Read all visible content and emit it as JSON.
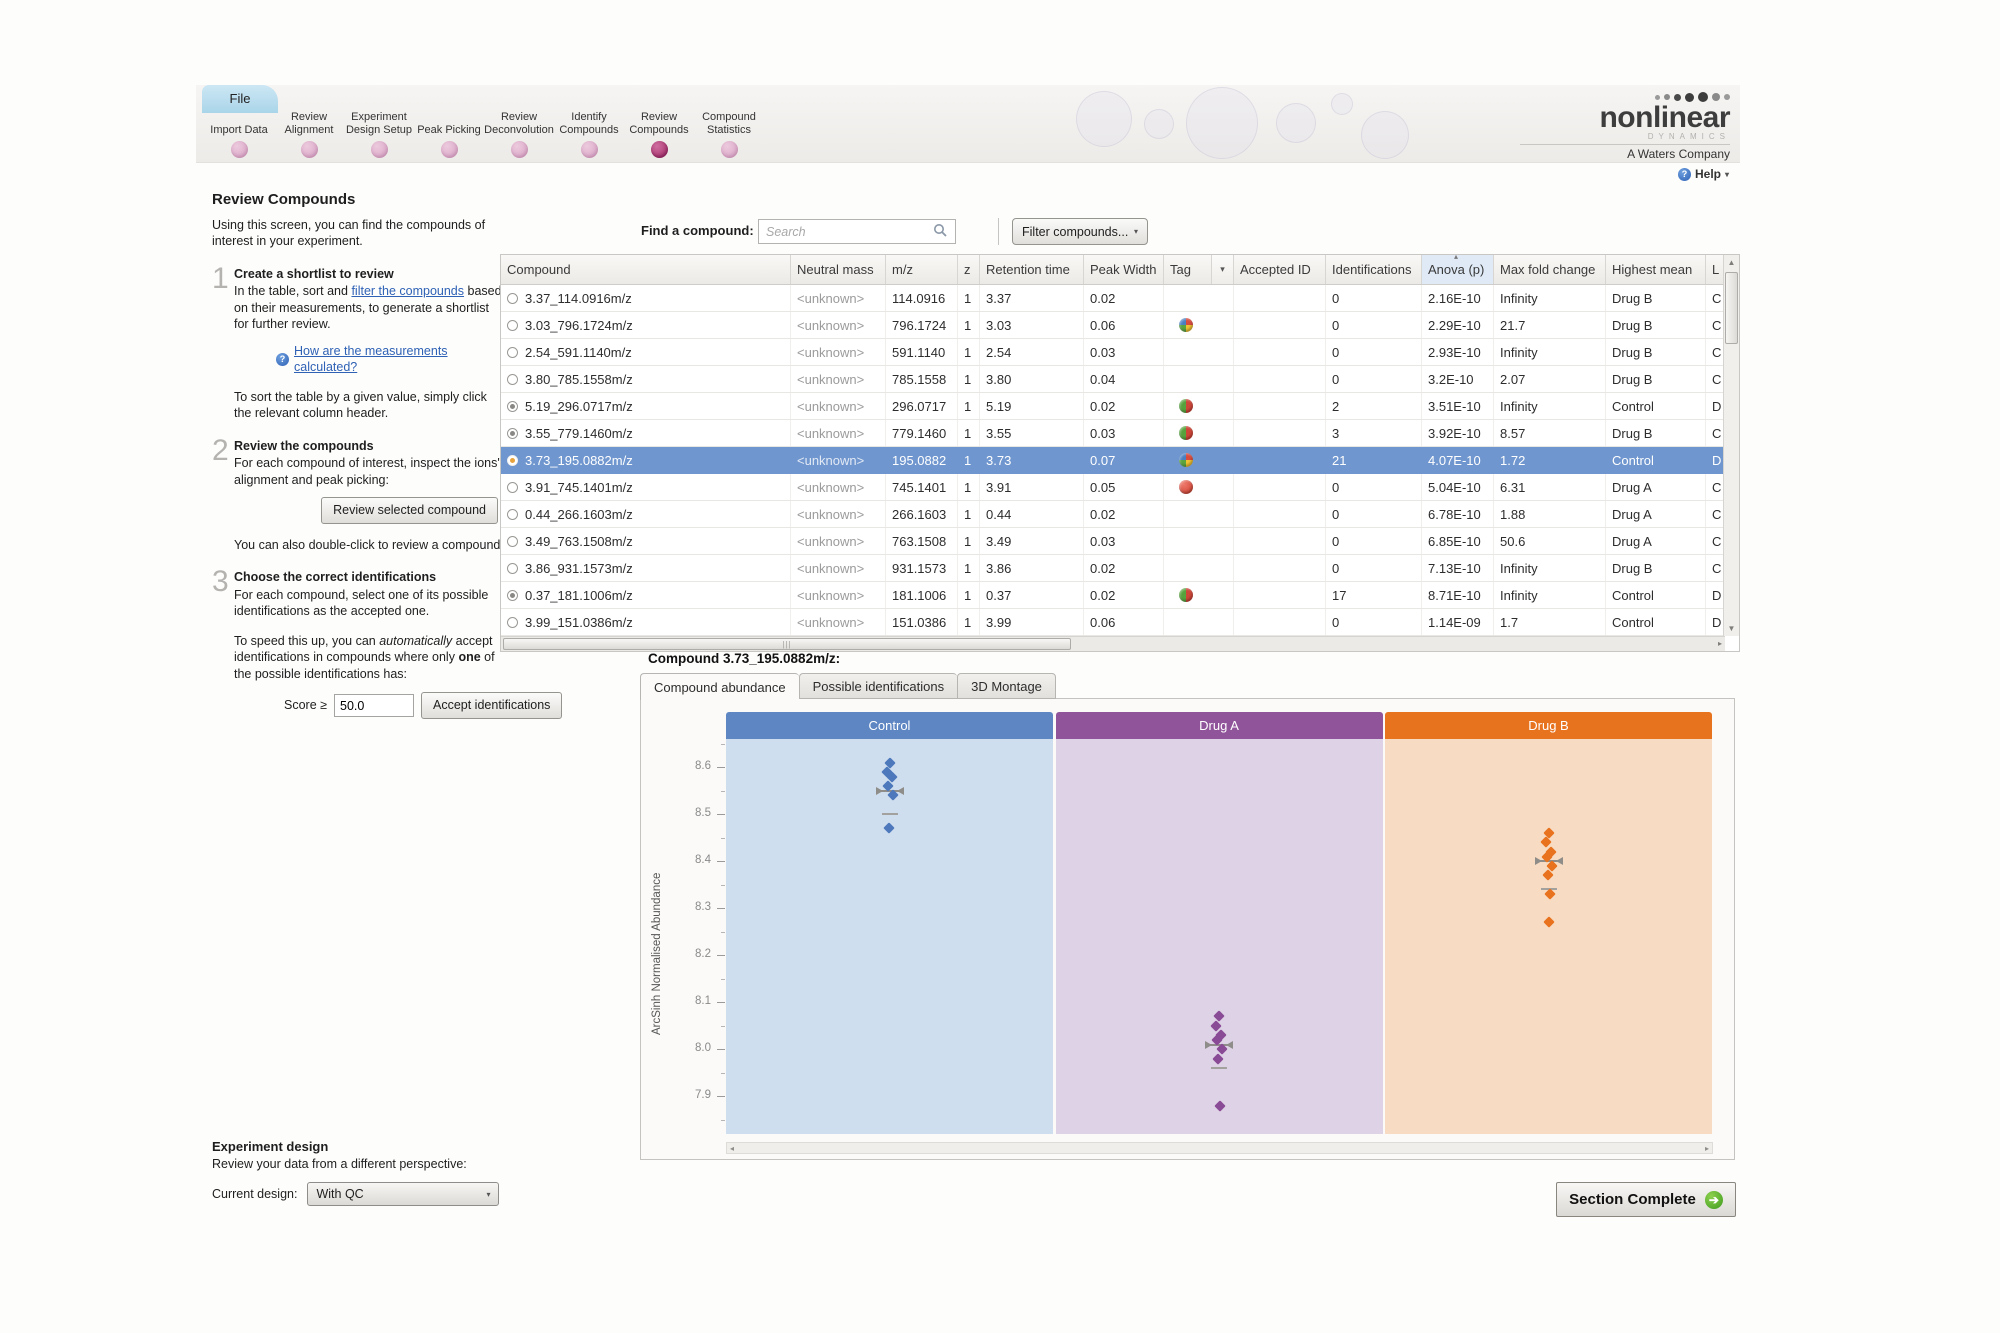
{
  "header": {
    "file_tab": "File",
    "steps": [
      {
        "line1": "",
        "line2": "Import Data",
        "active": false
      },
      {
        "line1": "Review",
        "line2": "Alignment",
        "active": false
      },
      {
        "line1": "Experiment",
        "line2": "Design Setup",
        "active": false
      },
      {
        "line1": "",
        "line2": "Peak Picking",
        "active": false
      },
      {
        "line1": "Review",
        "line2": "Deconvolution",
        "active": false
      },
      {
        "line1": "Identify",
        "line2": "Compounds",
        "active": false
      },
      {
        "line1": "Review",
        "line2": "Compounds",
        "active": true
      },
      {
        "line1": "Compound",
        "line2": "Statistics",
        "active": false
      }
    ],
    "logo": {
      "name": "nonlinear",
      "tagline": "DYNAMICS",
      "company": "A Waters Company"
    },
    "help_label": "Help"
  },
  "sidebar": {
    "title": "Review Compounds",
    "intro": "Using this screen, you can find the compounds of interest in your experiment.",
    "step1": {
      "num": "1",
      "heading": "Create a shortlist to review",
      "body_pre": "In the table, sort and ",
      "body_link": "filter the compounds",
      "body_post": " based on their measurements, to generate a shortlist for further review.",
      "measurements_link": "How are the measurements calculated?"
    },
    "sort_note": "To sort the table by a given value, simply click the relevant column header.",
    "step2": {
      "num": "2",
      "heading": "Review the compounds",
      "body": "For each compound of interest, inspect the ions' alignment and peak picking:",
      "button": "Review selected compound",
      "note": "You can also double-click to review a compound."
    },
    "step3": {
      "num": "3",
      "heading": "Choose the correct identifications",
      "body": "For each compound, select one of its possible identifications as the accepted one.",
      "speed_pre": "To speed this up, you can ",
      "speed_italic": "automatically",
      "speed_mid": " accept identifications in compounds where only ",
      "speed_bold": "one",
      "speed_post": " of the possible identifications has:",
      "score_label": "Score ≥",
      "score_value": "50.0",
      "accept_button": "Accept identifications"
    }
  },
  "find": {
    "label": "Find a compound:",
    "placeholder": "Search",
    "filter_button": "Filter compounds..."
  },
  "table": {
    "columns": [
      {
        "label": "Compound"
      },
      {
        "label": "Neutral mass"
      },
      {
        "label": "m/z"
      },
      {
        "label": "z"
      },
      {
        "label": "Retention time"
      },
      {
        "label": "Peak Width"
      },
      {
        "label": "Tag"
      },
      {
        "label": "Accepted ID"
      },
      {
        "label": "Identifications"
      },
      {
        "label": "Anova (p)",
        "sorted": true
      },
      {
        "label": "Max fold change"
      },
      {
        "label": "Highest mean"
      },
      {
        "label": "L"
      }
    ],
    "rows": [
      {
        "reviewed": false,
        "selected": false,
        "compound": "3.37_114.0916m/z",
        "neutral_mass": "<unknown>",
        "mz": "114.0916",
        "z": "1",
        "retention_time": "3.37",
        "peak_width": "0.02",
        "tag": "none",
        "accepted_id": "",
        "identifications": "0",
        "anova_p": "2.16E-10",
        "max_fold_change": "Infinity",
        "highest_mean": "Drug B",
        "lowest_mean_cut": "C"
      },
      {
        "reviewed": false,
        "selected": false,
        "compound": "3.03_796.1724m/z",
        "neutral_mass": "<unknown>",
        "mz": "796.1724",
        "z": "1",
        "retention_time": "3.03",
        "peak_width": "0.06",
        "tag": "multi",
        "accepted_id": "",
        "identifications": "0",
        "anova_p": "2.29E-10",
        "max_fold_change": "21.7",
        "highest_mean": "Drug B",
        "lowest_mean_cut": "C"
      },
      {
        "reviewed": false,
        "selected": false,
        "compound": "2.54_591.1140m/z",
        "neutral_mass": "<unknown>",
        "mz": "591.1140",
        "z": "1",
        "retention_time": "2.54",
        "peak_width": "0.03",
        "tag": "none",
        "accepted_id": "",
        "identifications": "0",
        "anova_p": "2.93E-10",
        "max_fold_change": "Infinity",
        "highest_mean": "Drug B",
        "lowest_mean_cut": "C"
      },
      {
        "reviewed": false,
        "selected": false,
        "compound": "3.80_785.1558m/z",
        "neutral_mass": "<unknown>",
        "mz": "785.1558",
        "z": "1",
        "retention_time": "3.80",
        "peak_width": "0.04",
        "tag": "none",
        "accepted_id": "",
        "identifications": "0",
        "anova_p": "3.2E-10",
        "max_fold_change": "2.07",
        "highest_mean": "Drug B",
        "lowest_mean_cut": "C"
      },
      {
        "reviewed": true,
        "selected": false,
        "compound": "5.19_296.0717m/z",
        "neutral_mass": "<unknown>",
        "mz": "296.0717",
        "z": "1",
        "retention_time": "5.19",
        "peak_width": "0.02",
        "tag": "greenred",
        "accepted_id": "",
        "identifications": "2",
        "anova_p": "3.51E-10",
        "max_fold_change": "Infinity",
        "highest_mean": "Control",
        "lowest_mean_cut": "D"
      },
      {
        "reviewed": true,
        "selected": false,
        "compound": "3.55_779.1460m/z",
        "neutral_mass": "<unknown>",
        "mz": "779.1460",
        "z": "1",
        "retention_time": "3.55",
        "peak_width": "0.03",
        "tag": "greenred",
        "accepted_id": "",
        "identifications": "3",
        "anova_p": "3.92E-10",
        "max_fold_change": "8.57",
        "highest_mean": "Drug B",
        "lowest_mean_cut": "C"
      },
      {
        "reviewed": true,
        "selected": true,
        "compound": "3.73_195.0882m/z",
        "neutral_mass": "<unknown>",
        "mz": "195.0882",
        "z": "1",
        "retention_time": "3.73",
        "peak_width": "0.07",
        "tag": "multi",
        "accepted_id": "",
        "identifications": "21",
        "anova_p": "4.07E-10",
        "max_fold_change": "1.72",
        "highest_mean": "Control",
        "lowest_mean_cut": "D"
      },
      {
        "reviewed": false,
        "selected": false,
        "compound": "3.91_745.1401m/z",
        "neutral_mass": "<unknown>",
        "mz": "745.1401",
        "z": "1",
        "retention_time": "3.91",
        "peak_width": "0.05",
        "tag": "red",
        "accepted_id": "",
        "identifications": "0",
        "anova_p": "5.04E-10",
        "max_fold_change": "6.31",
        "highest_mean": "Drug A",
        "lowest_mean_cut": "C"
      },
      {
        "reviewed": false,
        "selected": false,
        "compound": "0.44_266.1603m/z",
        "neutral_mass": "<unknown>",
        "mz": "266.1603",
        "z": "1",
        "retention_time": "0.44",
        "peak_width": "0.02",
        "tag": "none",
        "accepted_id": "",
        "identifications": "0",
        "anova_p": "6.78E-10",
        "max_fold_change": "1.88",
        "highest_mean": "Drug A",
        "lowest_mean_cut": "C"
      },
      {
        "reviewed": false,
        "selected": false,
        "compound": "3.49_763.1508m/z",
        "neutral_mass": "<unknown>",
        "mz": "763.1508",
        "z": "1",
        "retention_time": "3.49",
        "peak_width": "0.03",
        "tag": "none",
        "accepted_id": "",
        "identifications": "0",
        "anova_p": "6.85E-10",
        "max_fold_change": "50.6",
        "highest_mean": "Drug A",
        "lowest_mean_cut": "C"
      },
      {
        "reviewed": false,
        "selected": false,
        "compound": "3.86_931.1573m/z",
        "neutral_mass": "<unknown>",
        "mz": "931.1573",
        "z": "1",
        "retention_time": "3.86",
        "peak_width": "0.02",
        "tag": "none",
        "accepted_id": "",
        "identifications": "0",
        "anova_p": "7.13E-10",
        "max_fold_change": "Infinity",
        "highest_mean": "Drug B",
        "lowest_mean_cut": "C"
      },
      {
        "reviewed": true,
        "selected": false,
        "compound": "0.37_181.1006m/z",
        "neutral_mass": "<unknown>",
        "mz": "181.1006",
        "z": "1",
        "retention_time": "0.37",
        "peak_width": "0.02",
        "tag": "greenred",
        "accepted_id": "",
        "identifications": "17",
        "anova_p": "8.71E-10",
        "max_fold_change": "Infinity",
        "highest_mean": "Control",
        "lowest_mean_cut": "D"
      },
      {
        "reviewed": false,
        "selected": false,
        "compound": "3.99_151.0386m/z",
        "neutral_mass": "<unknown>",
        "mz": "151.0386",
        "z": "1",
        "retention_time": "3.99",
        "peak_width": "0.06",
        "tag": "none",
        "accepted_id": "",
        "identifications": "0",
        "anova_p": "1.14E-09",
        "max_fold_change": "1.7",
        "highest_mean": "Control",
        "lowest_mean_cut": "D"
      }
    ]
  },
  "detail": {
    "title": "Compound 3.73_195.0882m/z:",
    "tabs": [
      "Compound abundance",
      "Possible identifications",
      "3D Montage"
    ],
    "active_tab": 0
  },
  "chart_data": {
    "type": "scatter",
    "title": "Compound abundance",
    "ylabel": "ArcSinh Normalised Abundance",
    "ylim": [
      7.82,
      8.66
    ],
    "yticks": [
      8.6,
      8.5,
      8.4,
      8.3,
      8.2,
      8.1,
      8.0,
      7.9
    ],
    "grid": false,
    "groups": [
      {
        "name": "Control",
        "header_color": "#5d86c3",
        "fill_color": "#cfdeee",
        "point_color": "#4d79bc",
        "points": [
          8.61,
          8.59,
          8.58,
          8.56,
          8.54,
          8.47
        ],
        "mean": 8.55,
        "whisker": 8.5
      },
      {
        "name": "Drug A",
        "header_color": "#90549b",
        "fill_color": "#ded2e6",
        "point_color": "#8a4b96",
        "points": [
          8.07,
          8.05,
          8.03,
          8.02,
          8.0,
          7.98,
          7.88
        ],
        "mean": 8.01,
        "whisker": 7.96
      },
      {
        "name": "Drug B",
        "header_color": "#e8731f",
        "fill_color": "#f7dcc3",
        "point_color": "#e8721d",
        "points": [
          8.46,
          8.44,
          8.42,
          8.41,
          8.39,
          8.37,
          8.33,
          8.27
        ],
        "mean": 8.4,
        "whisker": 8.34
      }
    ]
  },
  "footer": {
    "heading": "Experiment design",
    "sub": "Review your data from a different perspective:",
    "current_label": "Current design:",
    "current_value": "With QC",
    "section_complete": "Section Complete"
  }
}
